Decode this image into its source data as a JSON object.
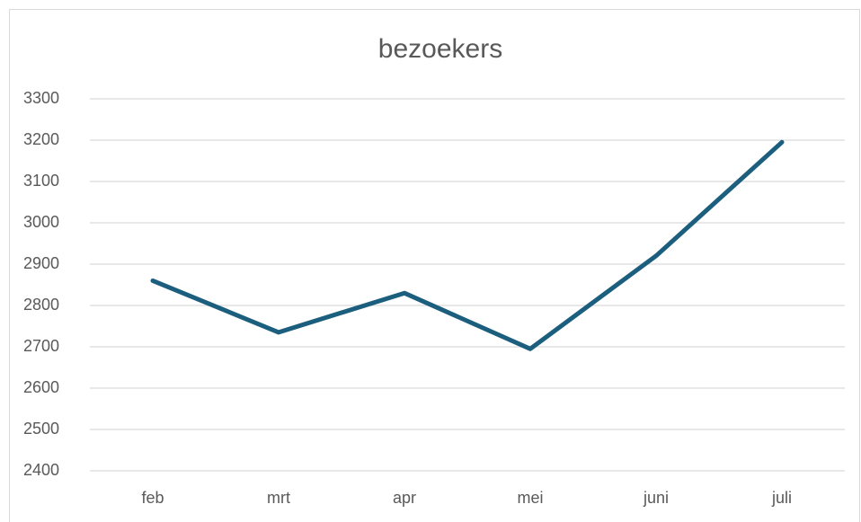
{
  "chart_data": {
    "type": "line",
    "title": "bezoekers",
    "categories": [
      "feb",
      "mrt",
      "apr",
      "mei",
      "juni",
      "juli"
    ],
    "series": [
      {
        "name": "bezoekers",
        "color": "#1b5e7e",
        "values": [
          2860,
          2735,
          2830,
          2695,
          2920,
          3195
        ]
      }
    ],
    "ylim": [
      2400,
      3300
    ],
    "yticks": [
      2400,
      2500,
      2600,
      2700,
      2800,
      2900,
      3000,
      3100,
      3200,
      3300
    ],
    "grid": true
  }
}
